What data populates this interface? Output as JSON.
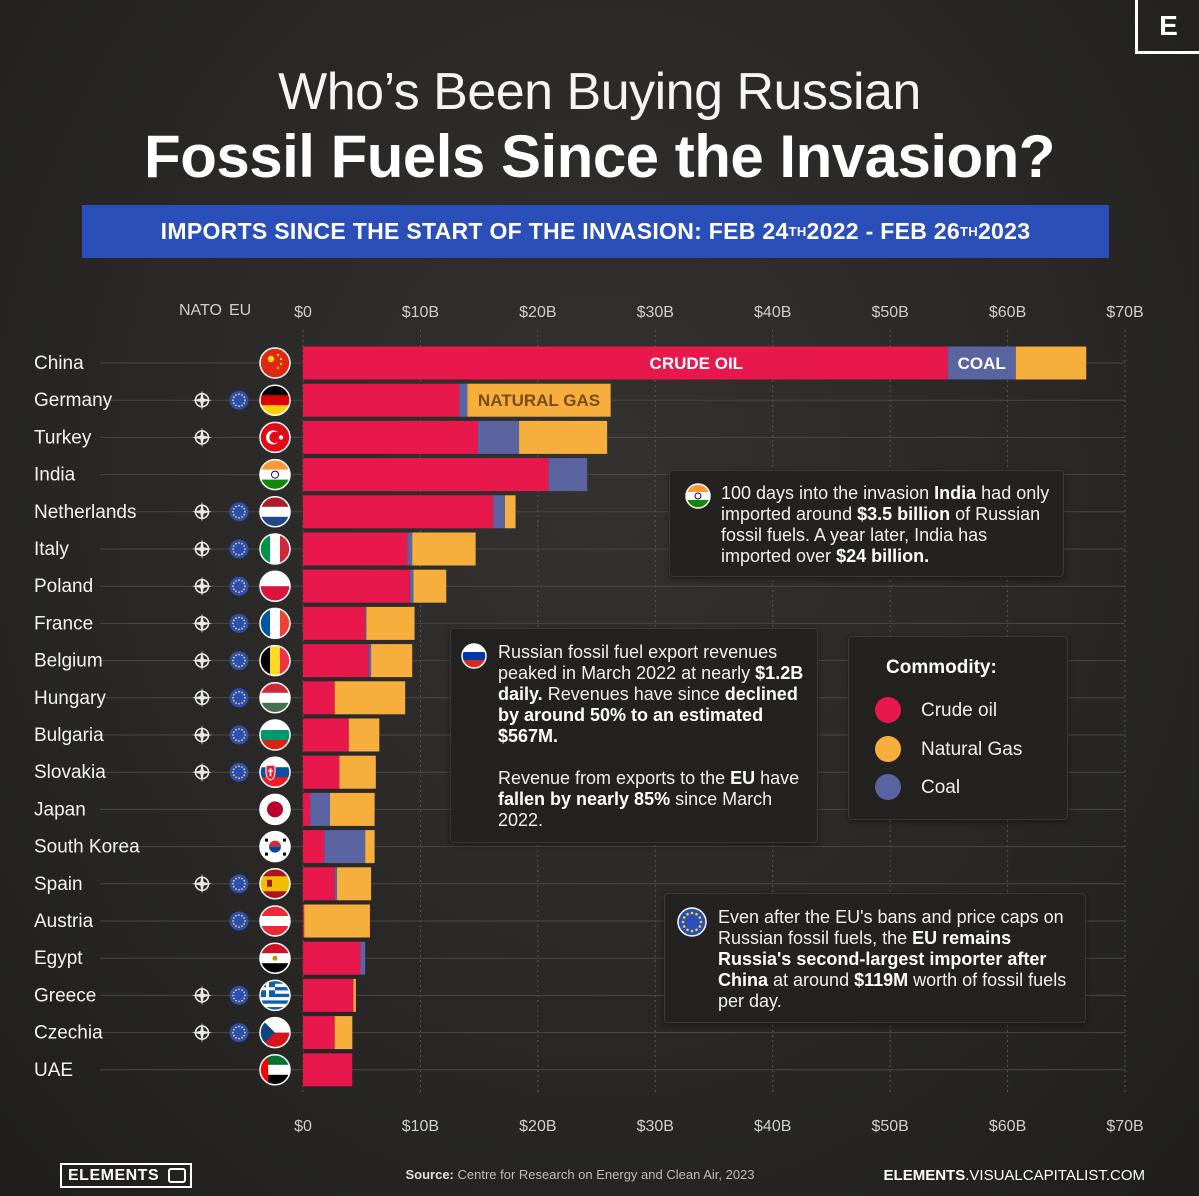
{
  "logo_letter": "E",
  "title_line1": "Who’s Been Buying Russian",
  "title_line2": "Fossil Fuels Since the Invasion?",
  "banner": {
    "prefix": "IMPORTS SINCE THE START OF THE INVASION:  FEB 24",
    "sup1": "TH",
    "mid": " 2022 - FEB 26",
    "sup2": "TH",
    "suffix": " 2023"
  },
  "column_headers": {
    "nato": "NATO",
    "eu": "EU"
  },
  "colors": {
    "crude_oil": "#e8174c",
    "natural_gas": "#f6ae3c",
    "coal": "#5a64a0",
    "banner": "#2b4fb8"
  },
  "chart_data": {
    "type": "bar",
    "orientation": "horizontal",
    "stacked": true,
    "xlim": [
      0,
      70
    ],
    "x_ticks": [
      "$0",
      "$10B",
      "$20B",
      "$30B",
      "$40B",
      "$50B",
      "$60B",
      "$70B"
    ],
    "x_tick_values": [
      0,
      10,
      20,
      30,
      40,
      50,
      60,
      70
    ],
    "grid": true,
    "categories": [
      "China",
      "Germany",
      "Turkey",
      "India",
      "Netherlands",
      "Italy",
      "Poland",
      "France",
      "Belgium",
      "Hungary",
      "Bulgaria",
      "Slovakia",
      "Japan",
      "South Korea",
      "Spain",
      "Austria",
      "Egypt",
      "Greece",
      "Czechia",
      "UAE"
    ],
    "series": [
      {
        "name": "Crude oil",
        "values": [
          54.9,
          13.3,
          14.9,
          20.9,
          16.2,
          8.9,
          9.1,
          5.3,
          5.6,
          2.7,
          3.9,
          3.1,
          0.6,
          1.8,
          2.7,
          0.1,
          4.9,
          4.3,
          2.7,
          4.2
        ]
      },
      {
        "name": "Coal",
        "values": [
          5.8,
          0.7,
          3.5,
          3.3,
          1.0,
          0.4,
          0.3,
          0.1,
          0.2,
          0.0,
          0.0,
          0.0,
          1.7,
          3.5,
          0.2,
          0.0,
          0.4,
          0.0,
          0.0,
          0.0
        ]
      },
      {
        "name": "Natural Gas",
        "values": [
          6.0,
          12.2,
          7.5,
          0.0,
          0.9,
          5.4,
          2.8,
          4.1,
          3.5,
          6.0,
          2.6,
          3.1,
          3.8,
          0.8,
          2.9,
          5.6,
          0.0,
          0.2,
          1.5,
          0.0
        ]
      }
    ],
    "bar_labels": [
      {
        "category": "China",
        "series": "Crude oil",
        "text": "CRUDE OIL"
      },
      {
        "category": "China",
        "series": "Coal",
        "text": "COAL"
      },
      {
        "category": "Germany",
        "series": "Natural Gas",
        "text": "NATURAL GAS"
      }
    ],
    "nato": [
      false,
      true,
      true,
      false,
      true,
      true,
      true,
      true,
      true,
      true,
      true,
      true,
      false,
      false,
      true,
      false,
      false,
      true,
      true,
      false
    ],
    "eu": [
      false,
      true,
      false,
      false,
      true,
      true,
      true,
      true,
      true,
      true,
      true,
      true,
      false,
      false,
      true,
      true,
      false,
      true,
      true,
      false
    ],
    "flags": [
      "china",
      "germany",
      "turkey",
      "india",
      "netherlands",
      "italy",
      "poland",
      "france",
      "belgium",
      "hungary",
      "bulgaria",
      "slovakia",
      "japan",
      "south-korea",
      "spain",
      "austria",
      "egypt",
      "greece",
      "czechia",
      "uae"
    ]
  },
  "callout_india": {
    "t1": "100 days into the invasion ",
    "b1": "India",
    "t2": " had only imported around ",
    "b2": "$3.5 billion",
    "t3": " of Russian fossil fuels. A year later, India has imported over ",
    "b3": "$24 billion."
  },
  "callout_russia": {
    "t1": "Russian fossil fuel export revenues peaked in March 2022 at nearly ",
    "b1": "$1.2B daily.",
    "t2": " Revenues have since ",
    "b2": "declined by around 50% to an estimated $567M.",
    "p2_t1": "Revenue from exports to the ",
    "p2_b1": "EU",
    "p2_t2": " have ",
    "p2_b2": "fallen by nearly 85%",
    "p2_t3": " since March 2022."
  },
  "callout_eu": {
    "t1": "Even after the EU's bans and price caps on Russian fossil fuels, the ",
    "b1": "EU remains Russia's second-largest importer after China",
    "t2": " at around ",
    "b2": "$119M",
    "t3": " worth of fossil fuels per day."
  },
  "legend": {
    "title": "Commodity:",
    "items": [
      {
        "label": "Crude oil",
        "color": "#e8174c"
      },
      {
        "label": "Natural Gas",
        "color": "#f6ae3c"
      },
      {
        "label": "Coal",
        "color": "#5a64a0"
      }
    ]
  },
  "footer": {
    "logo": "ELEMENTS",
    "source_label": "Source:",
    "source_text": " Centre for Research on Energy and Clean Air, 2023",
    "site_bold": "ELEMENTS",
    "site_rest": ".VISUALCAPITALIST.COM"
  }
}
